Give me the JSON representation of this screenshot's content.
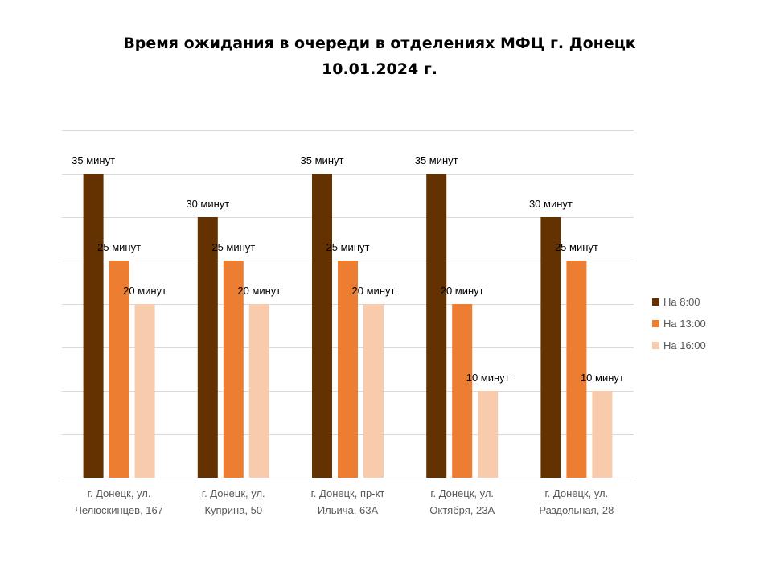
{
  "chart_data": {
    "type": "bar",
    "title": "Время ожидания в очереди в отделениях МФЦ г. Донецк",
    "subtitle": "10.01.2024 г.",
    "xlabel": "",
    "ylabel": "",
    "ylim": [
      0,
      40
    ],
    "grid": true,
    "legend_position": "right",
    "categories": [
      [
        "г. Донецк, ул.",
        "Челюскинцев, 167"
      ],
      [
        "г. Донецк, ул.",
        "Куприна, 50"
      ],
      [
        "г. Донецк, пр-кт",
        "Ильича, 63А"
      ],
      [
        "г. Донецк, ул.",
        "Октября, 23А"
      ],
      [
        "г. Донецк, ул.",
        "Раздольная, 28"
      ]
    ],
    "series": [
      {
        "name": "На 8:00",
        "color": "#633200",
        "values": [
          35,
          30,
          35,
          35,
          30
        ],
        "labels": [
          "35 минут",
          "30 минут",
          "35 минут",
          "35 минут",
          "30 минут"
        ]
      },
      {
        "name": "На 13:00",
        "color": "#ED7D31",
        "values": [
          25,
          25,
          25,
          20,
          25
        ],
        "labels": [
          "25 минут",
          "25 минут",
          "25 минут",
          "20 минут",
          "25 минут"
        ]
      },
      {
        "name": "На 16:00",
        "color": "#F8CBAD",
        "values": [
          20,
          20,
          20,
          10,
          10
        ],
        "labels": [
          "20 минут",
          "20 минут",
          "20 минут",
          "10 минут",
          "10 минут"
        ]
      }
    ]
  }
}
